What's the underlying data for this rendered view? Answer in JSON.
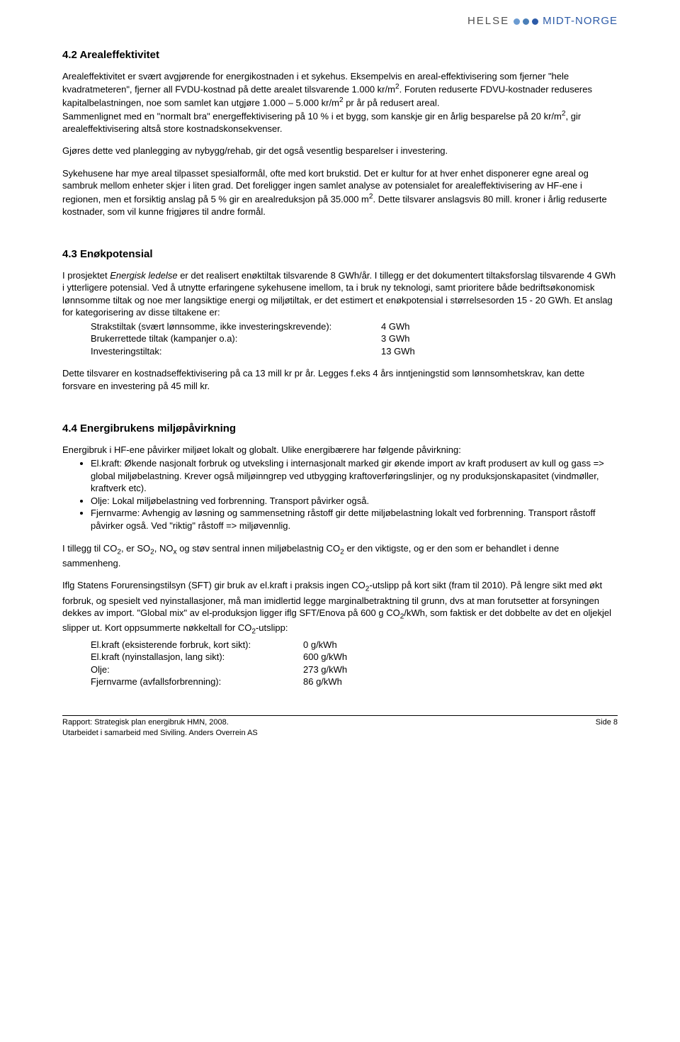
{
  "logo": {
    "helse": "HELSE",
    "midt": "MIDT-NORGE"
  },
  "s42": {
    "heading": "4.2  Arealeffektivitet",
    "p1a": "Arealeffektivitet er svært avgjørende for energikostnaden i et sykehus. Eksempelvis en areal-effektivisering som fjerner \"hele kvadratmeteren\", fjerner all FVDU-kostnad på dette arealet tilsvarende 1.000 kr/m",
    "p1b": ". Foruten reduserte FDVU-kostnader reduseres kapitalbelastningen, noe som samlet kan utgjøre 1.000 – 5.000 kr/m",
    "p1c": " pr år på redusert areal.",
    "p1d": "Sammenlignet med en \"normalt bra\" energeffektivisering på 10 % i et bygg, som kanskje gir en årlig besparelse på 20 kr/m",
    "p1e": ", gir arealeffektivisering altså store kostnadskonsekvenser.",
    "p2": "Gjøres dette ved planlegging av nybygg/rehab, gir det også vesentlig besparelser i investering.",
    "p3a": "Sykehusene har mye areal tilpasset spesialformål, ofte med kort brukstid. Det er kultur for at hver enhet disponerer egne areal og sambruk mellom enheter skjer i liten grad. Det foreligger ingen samlet analyse av potensialet for arealeffektivisering av HF-ene i regionen, men et forsiktig anslag på 5 % gir en arealreduksjon på 35.000 m",
    "p3b": ". Dette tilsvarer anslagsvis 80 mill. kroner i årlig reduserte kostnader, som vil kunne frigjøres til andre formål."
  },
  "s43": {
    "heading": "4.3  Enøkpotensial",
    "p1_i": "Energisk ledelse",
    "p1a": "I prosjektet ",
    "p1b": " er det realisert enøktiltak tilsvarende 8 GWh/år. I tillegg er det dokumentert tiltaksforslag tilsvarende 4 GWh i ytterligere potensial. Ved å utnytte erfaringene sykehusene imellom, ta i bruk ny teknologi, samt prioritere både bedriftsøkonomisk lønnsomme tiltak og noe mer langsiktige energi og miljøtiltak, er det estimert et enøkpotensial i størrelsesorden 15 - 20 GWh. Et anslag for kategorisering av disse tiltakene er:",
    "li1_l": "Strakstiltak (svært lønnsomme, ikke investeringskrevende):",
    "li1_v": "4 GWh",
    "li2_l": "Brukerrettede tiltak (kampanjer o.a):",
    "li2_v": "3 GWh",
    "li3_l": "Investeringstiltak:",
    "li3_v": "13 GWh",
    "p2": "Dette tilsvarer en kostnadseffektivisering på ca 13 mill kr pr år. Legges f.eks 4 års inntjeningstid som lønnsomhetskrav, kan dette forsvare en investering på 45 mill kr."
  },
  "s44": {
    "heading": "4.4  Energibrukens miljøpåvirkning",
    "p1": "Energibruk i HF-ene påvirker miljøet lokalt og globalt. Ulike energibærere har følgende påvirkning:",
    "li1": "El.kraft: Økende nasjonalt forbruk og utveksling i internasjonalt marked gir økende import av kraft produsert av kull og gass => global miljøbelastning. Krever også miljøinngrep ved utbygging kraftoverføringslinjer, og ny produksjonskapasitet (vindmøller, kraftverk etc).",
    "li2": "Olje: Lokal miljøbelastning ved forbrenning. Transport påvirker også.",
    "li3": "Fjernvarme: Avhengig av løsning og sammensetning råstoff gir dette miljøbelastning lokalt ved forbrenning. Transport råstoff påvirker også. Ved \"riktig\" råstoff => miljøvennlig.",
    "p2a": "I tillegg til CO",
    "p2b": ", er SO",
    "p2c": ", NO",
    "p2d": " og støv sentral innen miljøbelastnig CO",
    "p2e": " er den viktigste, og er den som er behandlet i denne sammenheng.",
    "p3a": "Iflg Statens Forurensingstilsyn (SFT) gir bruk av el.kraft i praksis ingen CO",
    "p3b": "-utslipp på kort sikt (fram til 2010). På lengre sikt med økt forbruk, og spesielt ved nyinstallasjoner, må man imidlertid legge marginalbetraktning til grunn, dvs at man forutsetter at forsyningen dekkes av import. \"Global mix\" av el-produksjon ligger iflg SFT/Enova på 600 g CO",
    "p3c": "/kWh, som faktisk er det dobbelte av det en oljekjel slipper ut. Kort oppsummerte nøkkeltall for CO",
    "p3d": "-utslipp:",
    "li4_l": "El.kraft (eksisterende forbruk, kort sikt):",
    "li4_v": "0 g/kWh",
    "li5_l": "El.kraft (nyinstallasjon, lang sikt):",
    "li5_v": "600 g/kWh",
    "li6_l": "Olje:",
    "li6_v": "273 g/kWh",
    "li7_l": "Fjernvarme (avfallsforbrenning):",
    "li7_v": "86 g/kWh"
  },
  "footer": {
    "line1": "Rapport: Strategisk plan energibruk HMN, 2008.",
    "line2": "Utarbeidet i samarbeid med Siviling. Anders Overrein AS",
    "page": "Side 8"
  }
}
